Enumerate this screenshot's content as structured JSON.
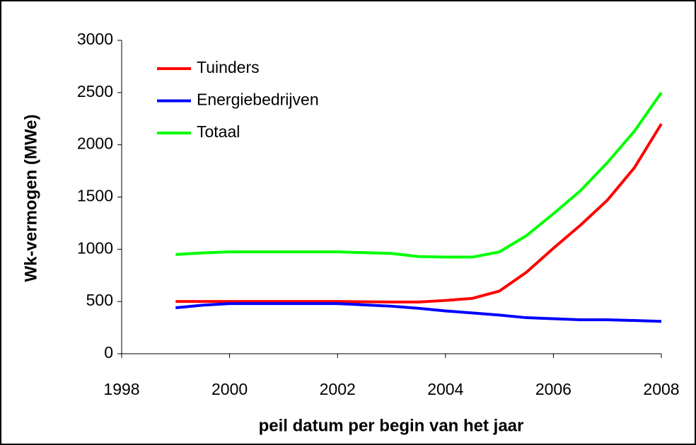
{
  "chart_data": {
    "type": "line",
    "x": [
      1999,
      1999.5,
      2000,
      2001,
      2002,
      2003,
      2003.5,
      2004,
      2004.5,
      2005,
      2005.5,
      2006,
      2006.5,
      2007,
      2007.5,
      2008
    ],
    "series": [
      {
        "name": "Tuinders",
        "color": "#ff0000",
        "values": [
          500,
          500,
          500,
          500,
          500,
          495,
          495,
          510,
          530,
          600,
          780,
          1010,
          1230,
          1470,
          1780,
          2200
        ]
      },
      {
        "name": "Energiebedrijven",
        "color": "#0000ff",
        "values": [
          440,
          465,
          480,
          480,
          480,
          455,
          435,
          410,
          390,
          370,
          345,
          335,
          325,
          325,
          318,
          310
        ]
      },
      {
        "name": "Totaal",
        "color": "#00ff00",
        "values": [
          950,
          965,
          975,
          975,
          975,
          960,
          930,
          925,
          925,
          975,
          1130,
          1340,
          1560,
          1830,
          2130,
          2500
        ]
      }
    ],
    "xlim": [
      1998,
      2008
    ],
    "xticks": [
      1998,
      2000,
      2002,
      2004,
      2006,
      2008
    ],
    "ylim": [
      0,
      3000
    ],
    "yticks": [
      0,
      500,
      1000,
      1500,
      2000,
      2500,
      3000
    ],
    "xlabel": "peil datum per begin van het jaar",
    "ylabel": "Wk-vermogen (MWe)",
    "legend": "upper-left"
  }
}
